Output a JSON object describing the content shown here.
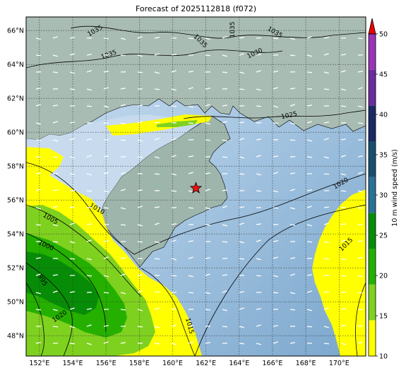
{
  "title": "Forecast of 2025112818 (f072)",
  "map": {
    "lat_ticks": [
      "66°N",
      "64°N",
      "62°N",
      "60°N",
      "58°N",
      "56°N",
      "54°N",
      "52°N",
      "50°N",
      "48°N"
    ],
    "lon_ticks": [
      "152°E",
      "154°E",
      "156°E",
      "158°E",
      "160°E",
      "162°E",
      "164°E",
      "166°E",
      "168°E",
      "170°E"
    ],
    "lat_values": [
      66,
      64,
      62,
      60,
      58,
      56,
      54,
      52,
      50,
      48
    ],
    "lon_values": [
      152,
      154,
      156,
      158,
      160,
      162,
      164,
      166,
      168,
      170
    ],
    "extent": {
      "lon_min": 151.2,
      "lon_max": 171.6,
      "lat_min": 46.8,
      "lat_max": 66.8
    },
    "grid": true,
    "marker": {
      "lon": 161.4,
      "lat": 56.7,
      "symbol": "red-star"
    },
    "isobar_labels": [
      "1035",
      "1035",
      "1035",
      "1035",
      "1035",
      "1030",
      "1025",
      "1020",
      "1015",
      "1010",
      "1005",
      "1000",
      "995",
      "1020",
      "1015"
    ]
  },
  "colorbar": {
    "label": "10 m wind speed (m/s)",
    "ticks": [
      "10",
      "15",
      "20",
      "25",
      "30",
      "35",
      "40",
      "45",
      "50"
    ],
    "tick_values": [
      10,
      15,
      20,
      25,
      30,
      35,
      40,
      45,
      50
    ],
    "colors": [
      "#ffff00",
      "#7fd11f",
      "#25b000",
      "#078c07",
      "#2a7196",
      "#184f6e",
      "#1b2a63",
      "#6a2c9c",
      "#9a34b6"
    ],
    "extend_color": "#ee0000"
  },
  "colors": {
    "land": "#a7bcb4",
    "sea_shallow": "#c7dcef",
    "sea_deep": "#7fa9cf",
    "grid": "#333333"
  }
}
